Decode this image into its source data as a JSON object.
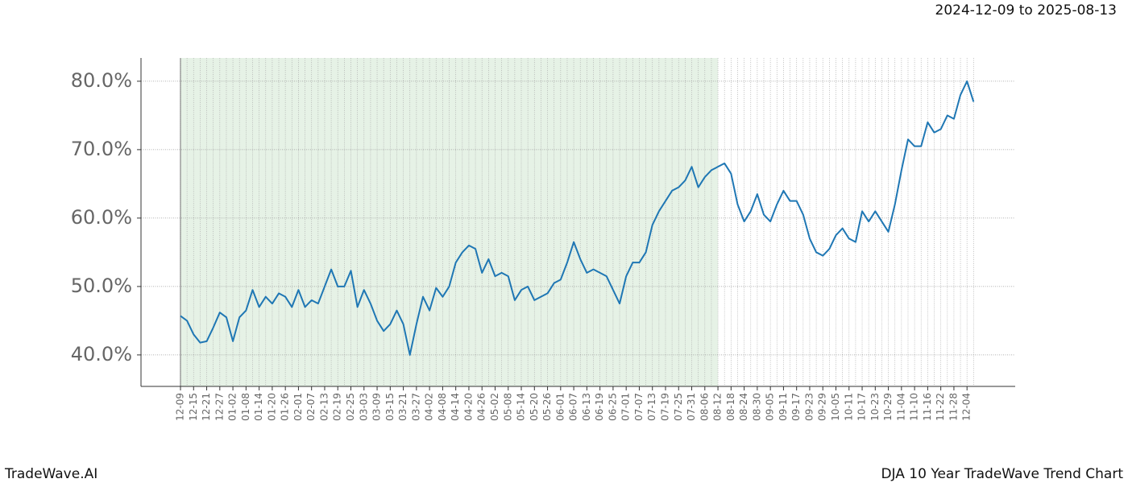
{
  "header": {
    "date_range": "2024-12-09 to 2025-08-13"
  },
  "footer": {
    "left": "TradeWave.AI",
    "right": "DJA 10 Year TradeWave Trend Chart"
  },
  "chart_data": {
    "type": "line",
    "categories": [
      "12-09",
      null,
      "12-15",
      null,
      "12-21",
      null,
      "12-27",
      null,
      "01-02",
      null,
      "01-08",
      null,
      "01-14",
      null,
      "01-20",
      null,
      "01-26",
      null,
      "02-01",
      null,
      "02-07",
      null,
      "02-13",
      null,
      "02-19",
      null,
      "02-25",
      null,
      "03-03",
      null,
      "03-09",
      null,
      "03-15",
      null,
      "03-21",
      null,
      "03-27",
      null,
      "04-02",
      null,
      "04-08",
      null,
      "04-14",
      null,
      "04-20",
      null,
      "04-26",
      null,
      "05-02",
      null,
      "05-08",
      null,
      "05-14",
      null,
      "05-20",
      null,
      "05-26",
      null,
      "06-01",
      null,
      "06-07",
      null,
      "06-13",
      null,
      "06-19",
      null,
      "06-25",
      null,
      "07-01",
      null,
      "07-07",
      null,
      "07-13",
      null,
      "07-19",
      null,
      "07-25",
      null,
      "07-31",
      null,
      "08-06",
      null,
      "08-12",
      null,
      "08-18",
      null,
      "08-24",
      null,
      "08-30",
      null,
      "09-05",
      null,
      "09-11",
      null,
      "09-17",
      null,
      "09-23",
      null,
      "09-29",
      null,
      "10-05",
      null,
      "10-11",
      null,
      "10-17",
      null,
      "10-23",
      null,
      "10-29",
      null,
      "11-04",
      null,
      "11-10",
      null,
      "11-16",
      null,
      "11-22",
      null,
      "11-28",
      null,
      "12-04",
      null
    ],
    "series": [
      {
        "name": "DJA",
        "color": "#1f77b4",
        "values": [
          45.7,
          45,
          43,
          41.8,
          42,
          44,
          46.2,
          45.5,
          42,
          45.5,
          46.5,
          49.5,
          47,
          48.5,
          47.5,
          49,
          48.5,
          47,
          49.5,
          47,
          48,
          47.5,
          50,
          52.5,
          50,
          50,
          52.3,
          47,
          49.5,
          47.5,
          45,
          43.5,
          44.5,
          46.5,
          44.5,
          40,
          44.5,
          48.5,
          46.5,
          49.8,
          48.5,
          50,
          53.5,
          55,
          56,
          55.5,
          52,
          54,
          51.5,
          52,
          51.5,
          48,
          49.5,
          50,
          48,
          48.5,
          49,
          50.5,
          51,
          53.5,
          56.5,
          54,
          52,
          52.5,
          52,
          51.5,
          49.5,
          47.5,
          51.5,
          53.5,
          53.5,
          55,
          59,
          61,
          62.5,
          64,
          64.5,
          65.5,
          67.5,
          64.5,
          66,
          67,
          67.5,
          68,
          66.5,
          62,
          59.5,
          61,
          63.5,
          60.5,
          59.5,
          62,
          64,
          62.5,
          62.5,
          60.5,
          57,
          55,
          54.5,
          55.5,
          57.5,
          58.5,
          57,
          56.5,
          61,
          59.5,
          61,
          59.5,
          58,
          62,
          67,
          71.5,
          70.5,
          70.5,
          74,
          72.5,
          73,
          75,
          74.5,
          78,
          80,
          77
        ]
      }
    ],
    "ylim": [
      35.4,
      83.4
    ],
    "yticks": [
      {
        "value": 40,
        "label": "40.0%"
      },
      {
        "value": 50,
        "label": "50.0%"
      },
      {
        "value": 60,
        "label": "60.0%"
      },
      {
        "value": 70,
        "label": "70.0%"
      },
      {
        "value": 80,
        "label": "80.0%"
      }
    ],
    "grid": true,
    "shaded_span": {
      "from": "12-09",
      "to": "08-12",
      "color": "#e6f2e6"
    }
  }
}
